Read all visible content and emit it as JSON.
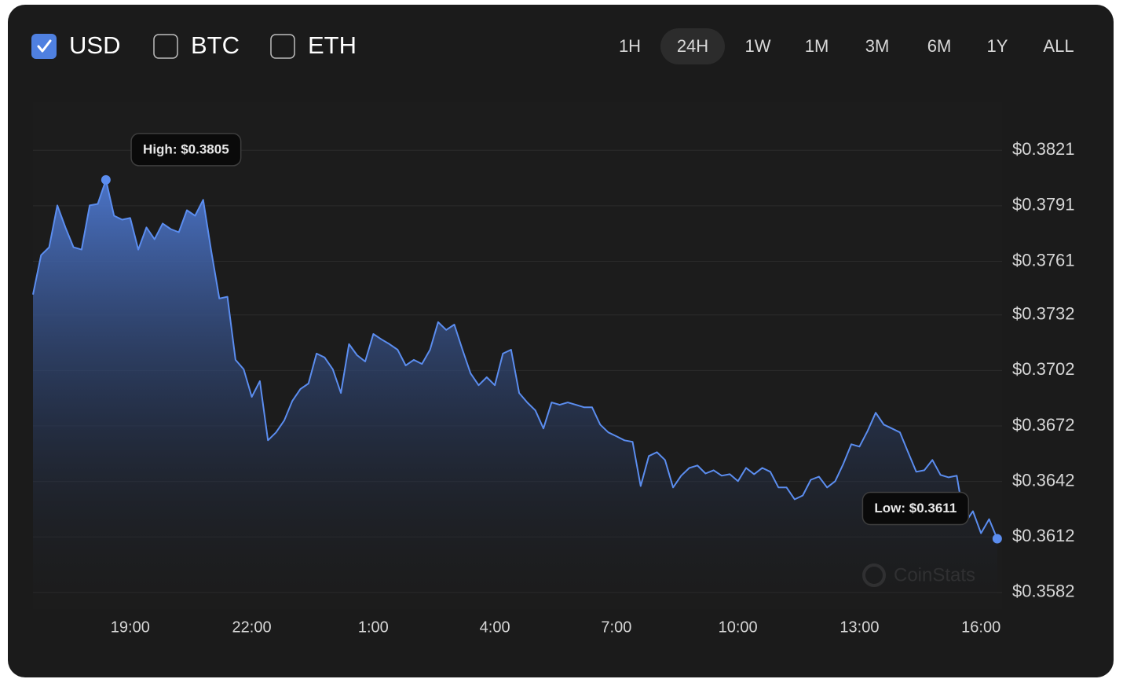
{
  "controls": {
    "currencies": [
      {
        "label": "USD",
        "checked": true
      },
      {
        "label": "BTC",
        "checked": false
      },
      {
        "label": "ETH",
        "checked": false
      }
    ],
    "ranges": [
      {
        "label": "1H",
        "selected": false
      },
      {
        "label": "24H",
        "selected": true
      },
      {
        "label": "1W",
        "selected": false
      },
      {
        "label": "1M",
        "selected": false
      },
      {
        "label": "3M",
        "selected": false
      },
      {
        "label": "6M",
        "selected": false
      },
      {
        "label": "1Y",
        "selected": false
      },
      {
        "label": "ALL",
        "selected": false
      }
    ]
  },
  "chart_data": {
    "type": "area",
    "color": "#5b8def",
    "grid": true,
    "watermark": "CoinStats",
    "xlim": [
      16.6,
      40.5
    ],
    "ylim": [
      0.3573,
      0.3847
    ],
    "xticks": [
      {
        "value": 19,
        "label": "19:00"
      },
      {
        "value": 22,
        "label": "22:00"
      },
      {
        "value": 25,
        "label": "1:00"
      },
      {
        "value": 28,
        "label": "4:00"
      },
      {
        "value": 31,
        "label": "7:00"
      },
      {
        "value": 34,
        "label": "10:00"
      },
      {
        "value": 37,
        "label": "13:00"
      },
      {
        "value": 40,
        "label": "16:00"
      }
    ],
    "yticks": [
      {
        "value": 0.3821,
        "label": "$0.3821"
      },
      {
        "value": 0.3791,
        "label": "$0.3791"
      },
      {
        "value": 0.3761,
        "label": "$0.3761"
      },
      {
        "value": 0.3732,
        "label": "$0.3732"
      },
      {
        "value": 0.3702,
        "label": "$0.3702"
      },
      {
        "value": 0.3672,
        "label": "$0.3672"
      },
      {
        "value": 0.3642,
        "label": "$0.3642"
      },
      {
        "value": 0.3612,
        "label": "$0.3612"
      },
      {
        "value": 0.3582,
        "label": "$0.3582"
      }
    ],
    "annotations": [
      {
        "text": "High: $0.3805",
        "x": 18.4,
        "y": 0.3805
      },
      {
        "text": "Low: $0.3611",
        "x": 40.4,
        "y": 0.3611
      }
    ],
    "x": [
      16.6,
      16.8,
      17,
      17.2,
      17.4,
      17.6,
      17.8,
      18,
      18.2,
      18.4,
      18.6,
      18.8,
      19,
      19.2,
      19.4,
      19.6,
      19.8,
      20,
      20.2,
      20.4,
      20.6,
      20.8,
      21,
      21.2,
      21.4,
      21.6,
      21.8,
      22,
      22.2,
      22.4,
      22.6,
      22.8,
      23,
      23.2,
      23.4,
      23.6,
      23.8,
      24,
      24.2,
      24.4,
      24.6,
      24.8,
      25,
      25.2,
      25.4,
      25.6,
      25.8,
      26,
      26.2,
      26.4,
      26.6,
      26.8,
      27,
      27.2,
      27.4,
      27.6,
      27.8,
      28,
      28.2,
      28.4,
      28.6,
      28.8,
      29,
      29.2,
      29.4,
      29.6,
      29.8,
      30,
      30.2,
      30.4,
      30.6,
      30.8,
      31,
      31.2,
      31.4,
      31.6,
      31.8,
      32,
      32.2,
      32.4,
      32.6,
      32.8,
      33,
      33.2,
      33.4,
      33.6,
      33.8,
      34,
      34.2,
      34.4,
      34.6,
      34.8,
      35,
      35.2,
      35.4,
      35.6,
      35.8,
      36,
      36.2,
      36.4,
      36.6,
      36.8,
      37,
      37.2,
      37.4,
      37.6,
      37.8,
      38,
      38.2,
      38.4,
      38.6,
      38.8,
      39,
      39.2,
      39.4,
      39.6,
      39.8,
      40,
      40.2,
      40.4
    ],
    "values": [
      0.3743,
      0.37643,
      0.37686,
      0.37912,
      0.37793,
      0.37686,
      0.37673,
      0.37912,
      0.3792,
      0.3805,
      0.37856,
      0.37835,
      0.37844,
      0.37673,
      0.37793,
      0.37729,
      0.37814,
      0.37784,
      0.37767,
      0.37886,
      0.37856,
      0.37942,
      0.37665,
      0.37409,
      0.37418,
      0.37077,
      0.37026,
      0.36877,
      0.36962,
      0.36642,
      0.36685,
      0.36749,
      0.36855,
      0.36919,
      0.36949,
      0.37111,
      0.3709,
      0.37026,
      0.36898,
      0.37162,
      0.37102,
      0.37068,
      0.37217,
      0.37188,
      0.37162,
      0.37132,
      0.37047,
      0.37077,
      0.37055,
      0.37132,
      0.37281,
      0.37239,
      0.37268,
      0.37132,
      0.37004,
      0.3694,
      0.36983,
      0.3694,
      0.37111,
      0.37132,
      0.36898,
      0.36847,
      0.36804,
      0.36706,
      0.36847,
      0.36834,
      0.36847,
      0.36834,
      0.36821,
      0.36821,
      0.36727,
      0.36685,
      0.36664,
      0.36642,
      0.36634,
      0.36395,
      0.36557,
      0.36578,
      0.36536,
      0.36387,
      0.36451,
      0.36493,
      0.36506,
      0.36463,
      0.3648,
      0.36451,
      0.36459,
      0.36421,
      0.36493,
      0.36459,
      0.36493,
      0.36472,
      0.36387,
      0.36387,
      0.36323,
      0.36344,
      0.36429,
      0.36446,
      0.36387,
      0.36421,
      0.36514,
      0.36621,
      0.36608,
      0.36693,
      0.36791,
      0.36727,
      0.36706,
      0.36685,
      0.36578,
      0.36472,
      0.3648,
      0.36536,
      0.36455,
      0.36442,
      0.36451,
      0.36195,
      0.36259,
      0.3614,
      0.36216,
      0.3611
    ]
  }
}
